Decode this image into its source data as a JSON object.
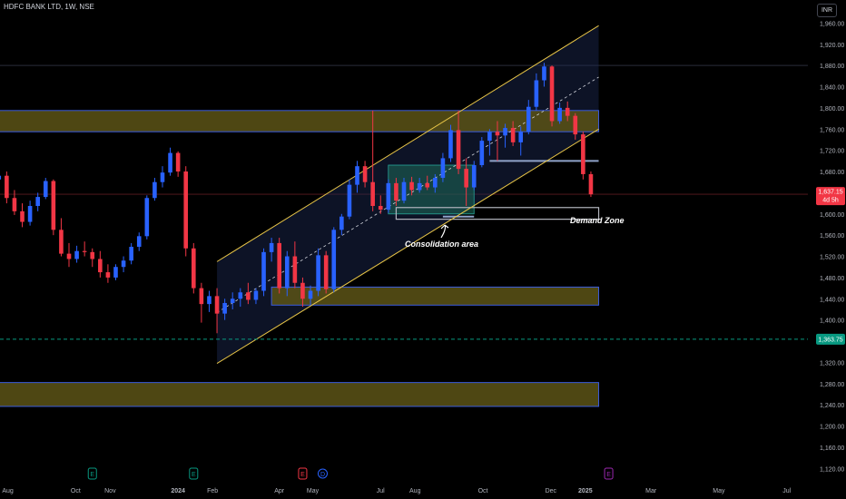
{
  "symbol_title": "HDFC BANK LTD, 1W, NSE",
  "currency": "INR",
  "colors": {
    "up": "#2962ff",
    "down": "#f23645",
    "channel": "#e8c547",
    "zone_fill": "#5c5316",
    "zone_border": "#3b5bdb",
    "price_tag": "#f23645",
    "dashed_tag": "#089981"
  },
  "annotations": {
    "consolidation": "Consolidation area",
    "demand": "Demand Zone"
  },
  "price_tags": {
    "last_price": "1,637.15",
    "countdown": "4d 5h",
    "dashed_level": "1,363.75"
  },
  "event_badges": [
    {
      "letter": "E",
      "color": "#089981",
      "date": "2023-10-16"
    },
    {
      "letter": "E",
      "color": "#089981",
      "date": "2024-01-15"
    },
    {
      "letter": "E",
      "color": "#f23645",
      "date": "2024-04-22"
    },
    {
      "letter": "D",
      "color": "#2962ff",
      "date": "2024-05-10"
    },
    {
      "letter": "E",
      "color": "#9c27b0",
      "date": "2025-01-22"
    }
  ],
  "chart_data": {
    "type": "candlestick",
    "ylim": [
      1100,
      2000
    ],
    "xlim": [
      "2023-07-25",
      "2025-07-20"
    ],
    "y_ticks": [
      "2,000.00",
      "1,960.00",
      "1,920.00",
      "1,880.00",
      "1,840.00",
      "1,800.00",
      "1,760.00",
      "1,720.00",
      "1,680.00",
      "1,640.00",
      "1,600.00",
      "1,560.00",
      "1,520.00",
      "1,480.00",
      "1,440.00",
      "1,400.00",
      "1,360.00",
      "1,320.00",
      "1,280.00",
      "1,240.00",
      "1,200.00",
      "1,160.00",
      "1,120.00"
    ],
    "x_ticks": [
      {
        "label": "Aug",
        "date": "2023-08-01"
      },
      {
        "label": "Oct",
        "date": "2023-10-01"
      },
      {
        "label": "Nov",
        "date": "2023-11-01"
      },
      {
        "label": "2024",
        "date": "2024-01-01"
      },
      {
        "label": "Feb",
        "date": "2024-02-01"
      },
      {
        "label": "Apr",
        "date": "2024-04-01"
      },
      {
        "label": "May",
        "date": "2024-05-01"
      },
      {
        "label": "Jul",
        "date": "2024-07-01"
      },
      {
        "label": "Aug",
        "date": "2024-08-01"
      },
      {
        "label": "Oct",
        "date": "2024-10-01"
      },
      {
        "label": "Dec",
        "date": "2024-12-01"
      },
      {
        "label": "2025",
        "date": "2025-01-01"
      },
      {
        "label": "Mar",
        "date": "2025-03-01"
      },
      {
        "label": "May",
        "date": "2025-05-01"
      },
      {
        "label": "Jul",
        "date": "2025-07-01"
      }
    ],
    "candles": {
      "start_date": "2023-07-24",
      "interval": "1W",
      "ohlc": [
        [
          1665,
          1682,
          1650,
          1672
        ],
        [
          1672,
          1680,
          1620,
          1630
        ],
        [
          1630,
          1645,
          1598,
          1605
        ],
        [
          1605,
          1620,
          1575,
          1585
        ],
        [
          1585,
          1625,
          1578,
          1615
        ],
        [
          1615,
          1640,
          1605,
          1632
        ],
        [
          1632,
          1668,
          1628,
          1662
        ],
        [
          1662,
          1665,
          1560,
          1570
        ],
        [
          1570,
          1592,
          1520,
          1525
        ],
        [
          1525,
          1545,
          1500,
          1515
        ],
        [
          1515,
          1540,
          1508,
          1530
        ],
        [
          1530,
          1548,
          1520,
          1528
        ],
        [
          1528,
          1535,
          1500,
          1515
        ],
        [
          1515,
          1530,
          1480,
          1490
        ],
        [
          1490,
          1505,
          1470,
          1480
        ],
        [
          1480,
          1505,
          1475,
          1500
        ],
        [
          1500,
          1520,
          1490,
          1512
        ],
        [
          1512,
          1545,
          1505,
          1538
        ],
        [
          1538,
          1565,
          1530,
          1558
        ],
        [
          1558,
          1635,
          1552,
          1630
        ],
        [
          1630,
          1668,
          1625,
          1660
        ],
        [
          1660,
          1690,
          1650,
          1678
        ],
        [
          1678,
          1725,
          1672,
          1715
        ],
        [
          1715,
          1718,
          1670,
          1680
        ],
        [
          1680,
          1690,
          1520,
          1535
        ],
        [
          1535,
          1545,
          1450,
          1460
        ],
        [
          1460,
          1470,
          1395,
          1430
        ],
        [
          1430,
          1455,
          1415,
          1445
        ],
        [
          1445,
          1460,
          1375,
          1412
        ],
        [
          1412,
          1440,
          1400,
          1432
        ],
        [
          1432,
          1452,
          1420,
          1440
        ],
        [
          1440,
          1460,
          1425,
          1452
        ],
        [
          1452,
          1470,
          1430,
          1438
        ],
        [
          1438,
          1460,
          1430,
          1455
        ],
        [
          1455,
          1535,
          1445,
          1528
        ],
        [
          1528,
          1555,
          1510,
          1545
        ],
        [
          1545,
          1555,
          1450,
          1460
        ],
        [
          1460,
          1530,
          1445,
          1520
        ],
        [
          1520,
          1548,
          1460,
          1470
        ],
        [
          1470,
          1480,
          1425,
          1440
        ],
        [
          1440,
          1465,
          1428,
          1455
        ],
        [
          1455,
          1535,
          1445,
          1522
        ],
        [
          1522,
          1530,
          1450,
          1458
        ],
        [
          1458,
          1575,
          1452,
          1570
        ],
        [
          1570,
          1600,
          1560,
          1595
        ],
        [
          1595,
          1665,
          1590,
          1655
        ],
        [
          1655,
          1700,
          1640,
          1690
        ],
        [
          1690,
          1700,
          1650,
          1660
        ],
        [
          1660,
          1795,
          1605,
          1615
        ],
        [
          1615,
          1635,
          1600,
          1608
        ],
        [
          1608,
          1665,
          1602,
          1658
        ],
        [
          1658,
          1668,
          1615,
          1625
        ],
        [
          1625,
          1668,
          1620,
          1660
        ],
        [
          1660,
          1670,
          1635,
          1645
        ],
        [
          1645,
          1668,
          1640,
          1658
        ],
        [
          1658,
          1672,
          1645,
          1650
        ],
        [
          1650,
          1675,
          1640,
          1668
        ],
        [
          1668,
          1715,
          1660,
          1705
        ],
        [
          1705,
          1768,
          1698,
          1758
        ],
        [
          1758,
          1795,
          1675,
          1685
        ],
        [
          1685,
          1705,
          1615,
          1650
        ],
        [
          1650,
          1700,
          1645,
          1692
        ],
        [
          1692,
          1745,
          1688,
          1738
        ],
        [
          1738,
          1760,
          1710,
          1755
        ],
        [
          1755,
          1775,
          1700,
          1748
        ],
        [
          1748,
          1770,
          1725,
          1762
        ],
        [
          1762,
          1775,
          1728,
          1735
        ],
        [
          1735,
          1765,
          1710,
          1755
        ],
        [
          1755,
          1815,
          1750,
          1802
        ],
        [
          1802,
          1865,
          1795,
          1852
        ],
        [
          1852,
          1885,
          1840,
          1878
        ],
        [
          1878,
          1880,
          1765,
          1775
        ],
        [
          1775,
          1810,
          1770,
          1800
        ],
        [
          1800,
          1812,
          1775,
          1785
        ],
        [
          1785,
          1790,
          1740,
          1750
        ],
        [
          1750,
          1755,
          1665,
          1675
        ],
        [
          1675,
          1680,
          1632,
          1637
        ]
      ]
    },
    "drawings": {
      "channel": {
        "lower_start": [
          "2024-02-05",
          1318
        ],
        "lower_end": [
          "2025-01-13",
          1760
        ],
        "upper_start": [
          "2024-02-05",
          1510
        ],
        "upper_end": [
          "2025-01-13",
          1955
        ],
        "mid_start": [
          "2024-02-05",
          1414
        ],
        "mid_end": [
          "2025-01-13",
          1858
        ]
      },
      "zones": [
        {
          "from": "2023-07-20",
          "to": "2025-01-13",
          "low": 1755,
          "high": 1795
        },
        {
          "from": "2024-03-25",
          "to": "2025-01-13",
          "low": 1428,
          "high": 1462
        },
        {
          "from": "2023-07-20",
          "to": "2025-01-13",
          "low": 1237,
          "high": 1282
        }
      ],
      "consolidation_box": {
        "from": "2024-07-08",
        "to": "2024-09-23",
        "low": 1600,
        "high": 1692
      },
      "demand_zone": {
        "from": "2024-07-15",
        "to": "2025-01-13",
        "low": 1590,
        "high": 1612
      },
      "resistance_lines": [
        {
          "from": "2024-10-07",
          "to": "2025-01-13",
          "price": 1700
        },
        {
          "from": "2024-08-26",
          "to": "2024-09-23",
          "price": 1595
        }
      ],
      "horizontal_ref": 1880,
      "dashed_level": 1363.75,
      "last_price": 1637.15
    }
  }
}
